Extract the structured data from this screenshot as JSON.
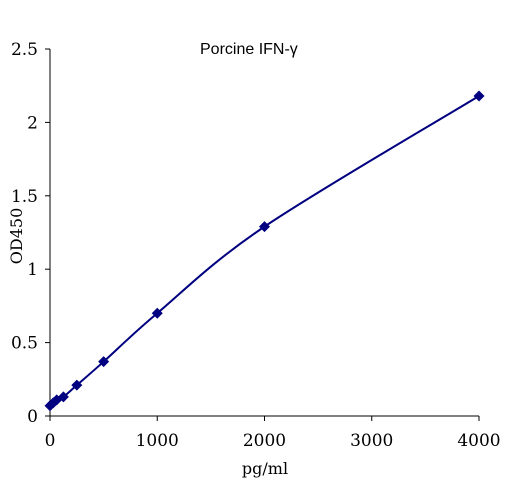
{
  "chart_data": {
    "type": "scatter",
    "title": "Porcine IFN-γ",
    "xlabel": "pg/ml",
    "ylabel": "OD450",
    "xlim": [
      0,
      4000
    ],
    "ylim": [
      0,
      2.5
    ],
    "x_ticks": [
      "0",
      "1000",
      "2000",
      "3000",
      "4000"
    ],
    "y_ticks": [
      "0",
      "0.5",
      "1",
      "1.5",
      "2",
      "2.5"
    ],
    "grid": false,
    "legend": "none",
    "series": [
      {
        "x": [
          0,
          31.25,
          62.5,
          125,
          250,
          500,
          1000,
          2000,
          4000
        ],
        "y": [
          0.07,
          0.09,
          0.11,
          0.13,
          0.21,
          0.37,
          0.7,
          1.29,
          2.18
        ],
        "marker": "diamond",
        "line": "smoothed",
        "color": "#000080"
      }
    ]
  }
}
